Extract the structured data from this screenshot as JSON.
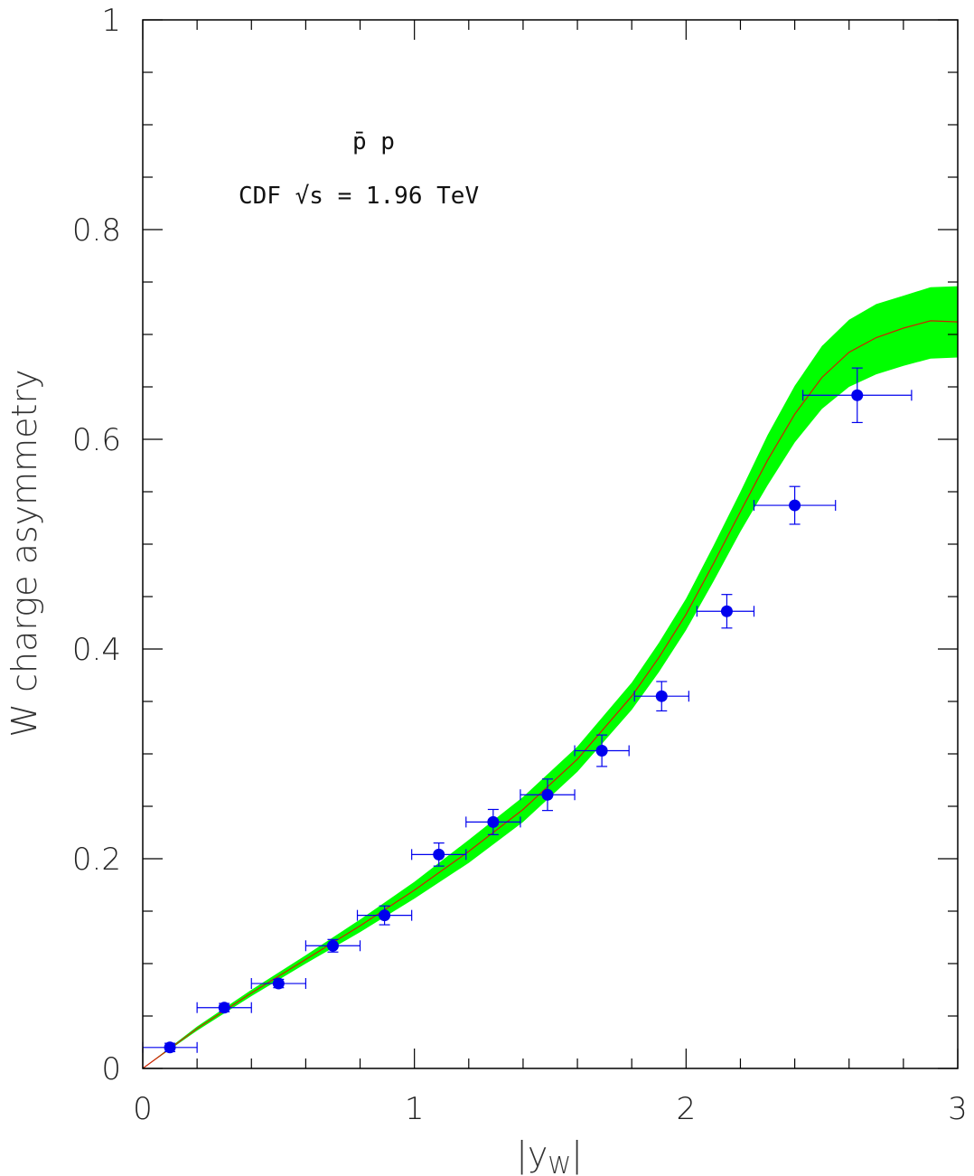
{
  "chart_data": {
    "type": "scatter",
    "title": "",
    "xlabel": "|y",
    "xlabel_sub": "W",
    "xlabel_close": "|",
    "ylabel": "W charge asymmetry",
    "xlim": [
      0,
      3
    ],
    "ylim": [
      0,
      1
    ],
    "x_ticks": [
      "0",
      "1",
      "2",
      "3"
    ],
    "y_ticks": [
      "0",
      "0.2",
      "0.4",
      "0.6",
      "0.8",
      "1"
    ],
    "annotations": {
      "process": "p̄ p",
      "experiment": "CDF √s = 1.96 TeV"
    },
    "colors": {
      "band": "#00ff00",
      "theory_line": "#cc2200",
      "data": "#0000ee"
    },
    "series": [
      {
        "kind": "data_points",
        "points": [
          {
            "x": 0.1,
            "xlo": 0.0,
            "xhi": 0.2,
            "y": 0.02,
            "yerr": 0.004
          },
          {
            "x": 0.3,
            "xlo": 0.2,
            "xhi": 0.4,
            "y": 0.058,
            "yerr": 0.004
          },
          {
            "x": 0.5,
            "xlo": 0.4,
            "xhi": 0.6,
            "y": 0.081,
            "yerr": 0.004
          },
          {
            "x": 0.7,
            "xlo": 0.6,
            "xhi": 0.8,
            "y": 0.117,
            "yerr": 0.006
          },
          {
            "x": 0.89,
            "xlo": 0.79,
            "xhi": 0.99,
            "y": 0.146,
            "yerr": 0.009
          },
          {
            "x": 1.09,
            "xlo": 0.99,
            "xhi": 1.19,
            "y": 0.204,
            "yerr": 0.011
          },
          {
            "x": 1.29,
            "xlo": 1.19,
            "xhi": 1.39,
            "y": 0.235,
            "yerr": 0.012
          },
          {
            "x": 1.49,
            "xlo": 1.39,
            "xhi": 1.59,
            "y": 0.261,
            "yerr": 0.015
          },
          {
            "x": 1.69,
            "xlo": 1.59,
            "xhi": 1.79,
            "y": 0.303,
            "yerr": 0.015
          },
          {
            "x": 1.91,
            "xlo": 1.81,
            "xhi": 2.01,
            "y": 0.355,
            "yerr": 0.014
          },
          {
            "x": 2.15,
            "xlo": 2.04,
            "xhi": 2.25,
            "y": 0.436,
            "yerr": 0.016
          },
          {
            "x": 2.4,
            "xlo": 2.25,
            "xhi": 2.55,
            "y": 0.537,
            "yerr": 0.018
          },
          {
            "x": 2.63,
            "xlo": 2.43,
            "xhi": 2.83,
            "y": 0.642,
            "yerr": 0.026
          }
        ]
      },
      {
        "kind": "theory_band",
        "x": [
          0.0,
          0.1,
          0.2,
          0.4,
          0.6,
          0.8,
          1.0,
          1.2,
          1.4,
          1.6,
          1.8,
          1.9,
          2.0,
          2.1,
          2.2,
          2.3,
          2.4,
          2.5,
          2.6,
          2.7,
          2.8,
          2.9,
          3.0
        ],
        "y": [
          0.0,
          0.019,
          0.038,
          0.072,
          0.104,
          0.136,
          0.17,
          0.207,
          0.247,
          0.295,
          0.355,
          0.392,
          0.433,
          0.481,
          0.531,
          0.58,
          0.624,
          0.659,
          0.683,
          0.697,
          0.706,
          0.713,
          0.712
        ],
        "ylow": [
          0.0,
          0.018,
          0.036,
          0.069,
          0.1,
          0.13,
          0.162,
          0.196,
          0.235,
          0.283,
          0.342,
          0.378,
          0.418,
          0.464,
          0.512,
          0.556,
          0.597,
          0.629,
          0.65,
          0.662,
          0.67,
          0.677,
          0.678
        ],
        "yhigh": [
          0.0,
          0.02,
          0.04,
          0.075,
          0.108,
          0.142,
          0.178,
          0.218,
          0.259,
          0.307,
          0.368,
          0.406,
          0.448,
          0.498,
          0.55,
          0.604,
          0.651,
          0.689,
          0.714,
          0.729,
          0.737,
          0.745,
          0.746
        ]
      }
    ]
  }
}
